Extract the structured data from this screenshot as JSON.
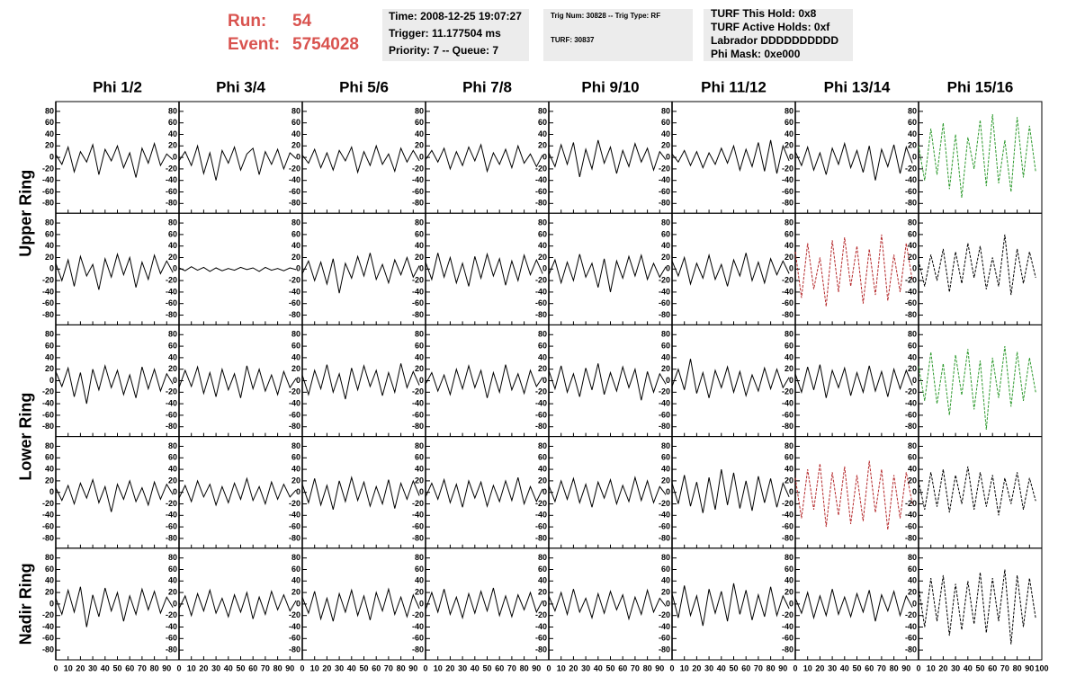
{
  "header": {
    "run_label": "Run:",
    "run": 54,
    "event_label": "Event:",
    "event": 5754028,
    "time_box": [
      "Time: 2008-12-25 19:07:27",
      "Trigger: 11.177504 ms",
      "Priority: 7 -- Queue: 7"
    ],
    "trig_box": [
      "Trig Num: 30828 -- Trig Type: RF",
      "TURF: 30837"
    ],
    "turf_box": [
      "TURF This Hold: 0x8",
      "TURF Active Holds: 0xf",
      "Labrador DDDDDDDDDD",
      "Phi Mask: 0xe000"
    ]
  },
  "chart_data": {
    "type": "line",
    "columns": [
      "Phi 1/2",
      "Phi 3/4",
      "Phi 5/6",
      "Phi 7/8",
      "Phi 9/10",
      "Phi 11/12",
      "Phi 13/14",
      "Phi 15/16"
    ],
    "rows": [
      "Upper Ring",
      "Lower Ring",
      "Nadir Ring"
    ],
    "xlim": [
      0,
      100
    ],
    "xticks": [
      0,
      10,
      20,
      30,
      40,
      50,
      60,
      70,
      80,
      90,
      100
    ],
    "ylim": [
      -97,
      97
    ],
    "yticks": [
      -80,
      -60,
      -40,
      -20,
      0,
      20,
      40,
      60,
      80
    ],
    "x": [
      0,
      5,
      10,
      15,
      20,
      25,
      30,
      35,
      40,
      45,
      50,
      55,
      60,
      65,
      70,
      75,
      80,
      85,
      90,
      95
    ],
    "panels": [
      [
        {
          "color": "#000000",
          "values": [
            5,
            -12,
            18,
            -25,
            10,
            -8,
            22,
            -30,
            14,
            -6,
            20,
            -18,
            8,
            -35,
            16,
            -10,
            24,
            -14,
            6,
            -4
          ]
        },
        {
          "color": "#000000",
          "values": [
            -6,
            10,
            -14,
            20,
            -28,
            8,
            -40,
            12,
            -10,
            18,
            -22,
            6,
            16,
            -30,
            10,
            -12,
            14,
            -20,
            8,
            -2
          ]
        },
        {
          "color": "#000000",
          "values": [
            4,
            -10,
            14,
            -18,
            8,
            -22,
            12,
            -6,
            18,
            -26,
            10,
            -14,
            20,
            -12,
            6,
            -24,
            16,
            -8,
            12,
            -6
          ]
        },
        {
          "color": "#000000",
          "values": [
            -4,
            12,
            -8,
            16,
            -20,
            10,
            -14,
            18,
            -6,
            22,
            -24,
            8,
            -12,
            14,
            -18,
            20,
            -10,
            6,
            -16,
            4
          ]
        },
        {
          "color": "#000000",
          "values": [
            8,
            -16,
            22,
            -12,
            26,
            -34,
            14,
            -20,
            30,
            -10,
            18,
            -28,
            12,
            -16,
            24,
            -8,
            16,
            -22,
            10,
            -4
          ]
        },
        {
          "color": "#000000",
          "values": [
            6,
            -8,
            12,
            -14,
            10,
            -18,
            8,
            -12,
            16,
            -10,
            20,
            -22,
            14,
            -16,
            26,
            -24,
            30,
            -28,
            20,
            -6
          ]
        },
        {
          "color": "#000000",
          "values": [
            10,
            -14,
            18,
            -22,
            8,
            -30,
            16,
            -12,
            24,
            -18,
            12,
            -26,
            20,
            -40,
            14,
            -16,
            22,
            -28,
            18,
            -10
          ]
        },
        {
          "color": "#2e9a2e",
          "dashed": true,
          "values": [
            20,
            -40,
            50,
            -30,
            60,
            -55,
            40,
            -70,
            35,
            -20,
            65,
            -50,
            75,
            -45,
            30,
            -60,
            70,
            -35,
            55,
            -25
          ]
        }
      ],
      [
        {
          "color": "#000000",
          "values": [
            10,
            -20,
            16,
            -30,
            22,
            -12,
            8,
            -36,
            18,
            -14,
            26,
            -10,
            20,
            -32,
            12,
            -18,
            24,
            -8,
            14,
            -6
          ]
        },
        {
          "color": "#000000",
          "values": [
            2,
            -3,
            4,
            -2,
            3,
            -4,
            2,
            -3,
            1,
            -2,
            3,
            -1,
            2,
            -4,
            3,
            -2,
            1,
            -3,
            2,
            -1
          ]
        },
        {
          "color": "#000000",
          "values": [
            -8,
            14,
            -20,
            12,
            -26,
            18,
            -42,
            10,
            -16,
            22,
            -12,
            28,
            -18,
            8,
            -24,
            16,
            -10,
            20,
            -14,
            6
          ]
        },
        {
          "color": "#000000",
          "values": [
            12,
            -18,
            28,
            -14,
            20,
            -24,
            10,
            -30,
            22,
            -16,
            26,
            -12,
            18,
            -28,
            14,
            -20,
            24,
            -10,
            16,
            -8
          ]
        },
        {
          "color": "#000000",
          "values": [
            -10,
            16,
            -24,
            12,
            -20,
            26,
            -14,
            10,
            -32,
            18,
            -40,
            14,
            -16,
            22,
            -12,
            24,
            -18,
            10,
            -14,
            4
          ]
        },
        {
          "color": "#000000",
          "values": [
            14,
            -12,
            20,
            -26,
            10,
            -16,
            24,
            -18,
            8,
            -30,
            16,
            -12,
            28,
            -20,
            12,
            -24,
            18,
            -10,
            14,
            -8
          ]
        },
        {
          "color": "#b5292b",
          "dashed": true,
          "values": [
            30,
            -50,
            45,
            -35,
            20,
            -65,
            50,
            -40,
            55,
            -30,
            40,
            -60,
            35,
            -45,
            60,
            -55,
            25,
            -40,
            45,
            -20
          ]
        },
        {
          "color": "#000000",
          "dashed": true,
          "values": [
            15,
            -30,
            25,
            -20,
            35,
            -40,
            30,
            -25,
            45,
            -15,
            40,
            -35,
            20,
            -30,
            60,
            -45,
            35,
            -25,
            30,
            -15
          ]
        }
      ],
      [
        {
          "color": "#000000",
          "values": [
            16,
            -10,
            22,
            -28,
            14,
            -40,
            20,
            -16,
            26,
            -12,
            18,
            -24,
            10,
            -30,
            24,
            -14,
            20,
            -18,
            12,
            -6
          ]
        },
        {
          "color": "#000000",
          "values": [
            -12,
            18,
            -10,
            24,
            -22,
            14,
            -28,
            20,
            -16,
            12,
            -30,
            26,
            -14,
            20,
            -18,
            10,
            -24,
            16,
            -12,
            4
          ]
        },
        {
          "color": "#000000",
          "values": [
            10,
            -24,
            18,
            -14,
            28,
            -20,
            12,
            -32,
            22,
            -16,
            26,
            -10,
            18,
            -26,
            14,
            -20,
            30,
            -12,
            16,
            -8
          ]
        },
        {
          "color": "#000000",
          "values": [
            -6,
            14,
            -18,
            10,
            -24,
            20,
            -14,
            26,
            -12,
            18,
            -30,
            14,
            -20,
            28,
            -16,
            12,
            -22,
            18,
            -10,
            6
          ]
        },
        {
          "color": "#000000",
          "values": [
            18,
            -14,
            26,
            -20,
            12,
            -28,
            22,
            -16,
            30,
            -24,
            14,
            -18,
            24,
            -12,
            20,
            -34,
            16,
            -20,
            12,
            -6
          ]
        },
        {
          "color": "#000000",
          "values": [
            -10,
            20,
            -16,
            38,
            -22,
            14,
            -30,
            18,
            -12,
            24,
            -20,
            16,
            -26,
            10,
            -18,
            22,
            -14,
            20,
            -12,
            6
          ]
        },
        {
          "color": "#000000",
          "values": [
            12,
            -20,
            24,
            -16,
            28,
            -30,
            18,
            -12,
            22,
            -26,
            14,
            -20,
            26,
            -18,
            16,
            -28,
            20,
            -14,
            18,
            -8
          ]
        },
        {
          "color": "#2e9a2e",
          "dashed": true,
          "values": [
            25,
            -35,
            50,
            -40,
            30,
            -60,
            45,
            -25,
            55,
            -50,
            35,
            -85,
            40,
            -30,
            60,
            -45,
            50,
            -35,
            40,
            -20
          ]
        }
      ],
      [
        {
          "color": "#000000",
          "values": [
            8,
            -14,
            12,
            -20,
            16,
            -10,
            22,
            -18,
            10,
            -34,
            14,
            -12,
            20,
            -16,
            8,
            -22,
            18,
            -12,
            14,
            -4
          ]
        },
        {
          "color": "#000000",
          "values": [
            -10,
            12,
            -16,
            20,
            -8,
            14,
            -22,
            10,
            -18,
            16,
            -12,
            24,
            -14,
            10,
            -20,
            18,
            -12,
            14,
            -8,
            4
          ]
        },
        {
          "color": "#000000",
          "values": [
            14,
            -18,
            24,
            -22,
            12,
            -30,
            20,
            -16,
            26,
            -14,
            18,
            -24,
            10,
            -20,
            22,
            -28,
            16,
            -12,
            20,
            -6
          ]
        },
        {
          "color": "#000000",
          "values": [
            -8,
            16,
            -12,
            22,
            -18,
            14,
            -26,
            20,
            -10,
            18,
            -24,
            12,
            -16,
            20,
            -14,
            26,
            -20,
            10,
            -16,
            6
          ]
        },
        {
          "color": "#000000",
          "values": [
            12,
            -16,
            20,
            -12,
            24,
            -18,
            14,
            -26,
            18,
            -10,
            22,
            -20,
            12,
            -16,
            26,
            -14,
            20,
            -18,
            10,
            -4
          ]
        },
        {
          "color": "#000000",
          "values": [
            16,
            -20,
            30,
            -24,
            18,
            -36,
            26,
            -30,
            40,
            -22,
            34,
            -28,
            20,
            -32,
            28,
            -18,
            24,
            -26,
            16,
            -8
          ]
        },
        {
          "color": "#b5292b",
          "dashed": true,
          "values": [
            25,
            -45,
            40,
            -30,
            50,
            -60,
            35,
            -40,
            45,
            -55,
            30,
            -50,
            55,
            -35,
            40,
            -65,
            30,
            -45,
            35,
            -20
          ]
        },
        {
          "color": "#000000",
          "dashed": true,
          "values": [
            20,
            -30,
            35,
            -25,
            40,
            -35,
            30,
            -20,
            45,
            -30,
            35,
            -25,
            30,
            -40,
            25,
            -20,
            35,
            -30,
            25,
            -15
          ]
        }
      ],
      [
        {
          "color": "#000000",
          "values": [
            10,
            -18,
            24,
            -14,
            30,
            -40,
            16,
            -22,
            28,
            -12,
            20,
            -30,
            14,
            -18,
            26,
            -10,
            22,
            -16,
            12,
            -6
          ]
        },
        {
          "color": "#000000",
          "values": [
            -8,
            14,
            -20,
            18,
            -12,
            24,
            -16,
            10,
            -22,
            16,
            -14,
            20,
            -26,
            12,
            -18,
            22,
            -10,
            16,
            -12,
            6
          ]
        },
        {
          "color": "#000000",
          "values": [
            12,
            -16,
            22,
            -26,
            10,
            -30,
            18,
            -14,
            24,
            -20,
            14,
            -28,
            20,
            -12,
            26,
            -18,
            12,
            -22,
            16,
            -8
          ]
        },
        {
          "color": "#000000",
          "values": [
            -10,
            20,
            -14,
            26,
            -18,
            12,
            -24,
            18,
            -16,
            22,
            -12,
            28,
            -20,
            14,
            -22,
            16,
            -10,
            20,
            -14,
            6
          ]
        },
        {
          "color": "#000000",
          "values": [
            14,
            -12,
            20,
            -18,
            26,
            -14,
            10,
            -24,
            18,
            -16,
            22,
            -10,
            16,
            -26,
            12,
            -18,
            24,
            -14,
            10,
            -4
          ]
        },
        {
          "color": "#000000",
          "values": [
            18,
            -24,
            32,
            -20,
            14,
            -38,
            26,
            -16,
            22,
            -30,
            36,
            -18,
            24,
            -28,
            16,
            -22,
            30,
            -20,
            14,
            -8
          ]
        },
        {
          "color": "#000000",
          "values": [
            10,
            -16,
            20,
            -24,
            14,
            -20,
            26,
            -18,
            12,
            -22,
            18,
            -14,
            24,
            -30,
            16,
            -12,
            22,
            -20,
            14,
            -6
          ]
        },
        {
          "color": "#000000",
          "dashed": true,
          "values": [
            30,
            -40,
            45,
            -30,
            50,
            -55,
            35,
            -45,
            40,
            -35,
            55,
            -50,
            45,
            -30,
            60,
            -70,
            50,
            -40,
            45,
            -25
          ]
        }
      ]
    ]
  }
}
